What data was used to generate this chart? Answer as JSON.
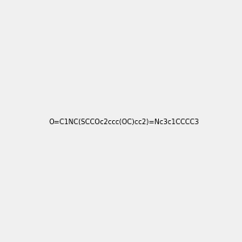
{
  "smiles": "O=C1NC(SCCOc2ccc(OC)cc2)=Nc3c1CCCC3",
  "image_size": 300,
  "background_color": "#f0f0f0",
  "bond_color": "#000000",
  "title": ""
}
